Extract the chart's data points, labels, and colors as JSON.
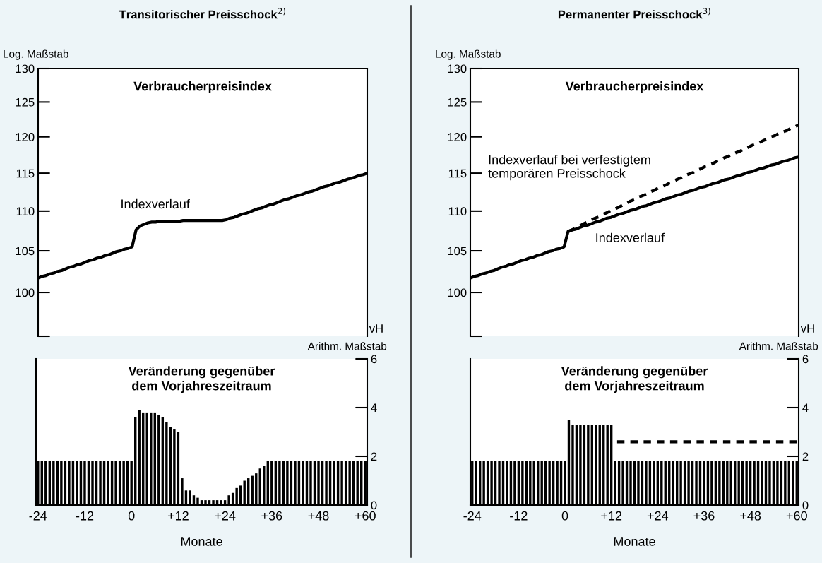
{
  "chart_data": [
    {
      "type": "line",
      "title": "Transitorischer Preisschock$^{2)}$",
      "subtitle": "Verbraucherpreisindex",
      "log": "y",
      "ylim": [
        95,
        130
      ],
      "yticks": [
        {
          "value": 95,
          "label": null
        },
        100,
        105,
        110,
        115,
        120,
        125,
        130
      ],
      "tick_labels": "y",
      "annotations": [
        "Log. Maßstab",
        "Indexverlauf"
      ],
      "categories": [
        null,
        null,
        null,
        null,
        null,
        null,
        null,
        null,
        null,
        null,
        null,
        null,
        null,
        null,
        null,
        null,
        null,
        null,
        null,
        null,
        null,
        null,
        null,
        null,
        null,
        null,
        null,
        null,
        null,
        null,
        null,
        null,
        null,
        null,
        null,
        null,
        null,
        null,
        null,
        null,
        null,
        null,
        null,
        null,
        null,
        null,
        null,
        null,
        null,
        null,
        null,
        null,
        null,
        null,
        null,
        null,
        null,
        null,
        null,
        null,
        null,
        null,
        null,
        null,
        null,
        null,
        null,
        null,
        null,
        null,
        null,
        null,
        null,
        null,
        null,
        null,
        null,
        null,
        null,
        null,
        null,
        null,
        null,
        null,
        null
      ],
      "series": [
        {
          "color": "#000000",
          "line_style": "solid",
          "values": [
            101.7,
            101.9,
            102.0,
            102.2,
            102.3,
            102.5,
            102.6,
            102.8,
            103.0,
            103.1,
            103.3,
            103.4,
            103.6,
            103.8,
            103.9,
            104.1,
            104.2,
            104.4,
            104.5,
            104.7,
            104.9,
            105.0,
            105.2,
            105.3,
            105.5,
            107.6,
            108.1,
            108.3,
            108.5,
            108.6,
            108.6,
            108.7,
            108.7,
            108.7,
            108.7,
            108.7,
            108.7,
            108.8,
            108.8,
            108.8,
            108.8,
            108.8,
            108.8,
            108.8,
            108.8,
            108.8,
            108.8,
            108.8,
            108.9,
            109.1,
            109.2,
            109.4,
            109.6,
            109.7,
            109.9,
            110.1,
            110.3,
            110.4,
            110.6,
            110.8,
            110.9,
            111.1,
            111.3,
            111.5,
            111.6,
            111.8,
            112.0,
            112.1,
            112.3,
            112.5,
            112.6,
            112.8,
            113.0,
            113.2,
            113.3,
            113.5,
            113.7,
            113.8,
            114.0,
            114.2,
            114.3,
            114.5,
            114.7,
            114.8,
            115.0
          ]
        }
      ]
    },
    {
      "type": "bar",
      "title": "Veränderung gegenüber\ndem Vorjahreszeitraum",
      "xlabel": "Monate",
      "y2label": "vH",
      "xlim": [
        -24.5,
        60.5
      ],
      "xticks": [
        -24,
        -12,
        0,
        {
          "value": 12,
          "label": "+12"
        },
        {
          "value": 24,
          "label": "+24"
        },
        {
          "value": 36,
          "label": "+36"
        },
        {
          "value": 48,
          "label": "+48"
        },
        {
          "value": 60,
          "label": "+60"
        }
      ],
      "y2lim": [
        0,
        6
      ],
      "y2ticks": [
        0,
        2,
        4,
        6
      ],
      "annotations": [
        "Arithm. Maßstab"
      ],
      "x": [
        -24,
        -23,
        -22,
        -21,
        -20,
        -19,
        -18,
        -17,
        -16,
        -15,
        -14,
        -13,
        -12,
        -11,
        -10,
        -9,
        -8,
        -7,
        -6,
        -5,
        -4,
        -3,
        -2,
        -1,
        0,
        1,
        2,
        3,
        4,
        5,
        6,
        7,
        8,
        9,
        10,
        11,
        12,
        13,
        14,
        15,
        16,
        17,
        18,
        19,
        20,
        21,
        22,
        23,
        24,
        25,
        26,
        27,
        28,
        29,
        30,
        31,
        32,
        33,
        34,
        35,
        36,
        37,
        38,
        39,
        40,
        41,
        42,
        43,
        44,
        45,
        46,
        47,
        48,
        49,
        50,
        51,
        52,
        53,
        54,
        55,
        56,
        57,
        58,
        59,
        60
      ],
      "series": [
        {
          "color": "#000000",
          "axis": "y2",
          "values": [
            1.8,
            1.8,
            1.8,
            1.8,
            1.8,
            1.8,
            1.8,
            1.8,
            1.8,
            1.8,
            1.8,
            1.8,
            1.8,
            1.8,
            1.8,
            1.8,
            1.8,
            1.8,
            1.8,
            1.8,
            1.8,
            1.8,
            1.8,
            1.8,
            1.8,
            3.6,
            3.9,
            3.8,
            3.8,
            3.8,
            3.8,
            3.7,
            3.6,
            3.4,
            3.2,
            3.1,
            3.0,
            1.1,
            0.6,
            0.6,
            0.4,
            0.3,
            0.2,
            0.2,
            0.2,
            0.2,
            0.2,
            0.2,
            0.2,
            0.4,
            0.5,
            0.7,
            0.8,
            1.0,
            1.1,
            1.2,
            1.3,
            1.5,
            1.6,
            1.8,
            1.8,
            1.8,
            1.8,
            1.8,
            1.8,
            1.8,
            1.8,
            1.8,
            1.8,
            1.8,
            1.8,
            1.8,
            1.8,
            1.8,
            1.8,
            1.8,
            1.8,
            1.8,
            1.8,
            1.8,
            1.8,
            1.8,
            1.8,
            1.8,
            1.8
          ]
        }
      ]
    },
    {
      "type": "line",
      "title": "Permanenter Preisschock$^{3)}$",
      "subtitle": "Verbraucherpreisindex",
      "log": "y",
      "ylim": [
        95,
        130
      ],
      "yticks": [
        {
          "value": 95,
          "label": null
        },
        100,
        105,
        110,
        115,
        120,
        125,
        130
      ],
      "tick_labels": "y",
      "annotations": [
        "Log. Maßstab",
        "Indexverlauf bei verfestigtem\ntemporären Preisschock",
        "Indexverlauf"
      ],
      "categories": [
        null,
        null,
        null,
        null,
        null,
        null,
        null,
        null,
        null,
        null,
        null,
        null,
        null,
        null,
        null,
        null,
        null,
        null,
        null,
        null,
        null,
        null,
        null,
        null,
        null,
        null,
        null,
        null,
        null,
        null,
        null,
        null,
        null,
        null,
        null,
        null,
        null,
        null,
        null,
        null,
        null,
        null,
        null,
        null,
        null,
        null,
        null,
        null,
        null,
        null,
        null,
        null,
        null,
        null,
        null,
        null,
        null,
        null,
        null,
        null,
        null,
        null,
        null,
        null,
        null,
        null,
        null,
        null,
        null,
        null,
        null,
        null,
        null,
        null,
        null,
        null,
        null,
        null,
        null,
        null,
        null,
        null,
        null,
        null,
        null
      ],
      "series": [
        {
          "color": "#000000",
          "line_style": "dashed",
          "values": [
            null,
            null,
            null,
            null,
            null,
            null,
            null,
            null,
            null,
            null,
            null,
            null,
            null,
            null,
            null,
            null,
            null,
            null,
            null,
            null,
            null,
            null,
            null,
            null,
            null,
            107.4,
            107.6,
            107.9,
            108.1,
            108.4,
            108.6,
            108.9,
            109.1,
            109.3,
            109.6,
            109.8,
            110.1,
            110.3,
            110.5,
            110.8,
            111.0,
            111.3,
            111.5,
            111.8,
            112.0,
            112.2,
            112.5,
            112.7,
            113.0,
            113.2,
            113.4,
            113.7,
            113.9,
            114.2,
            114.4,
            114.7,
            114.9,
            115.1,
            115.4,
            115.6,
            115.9,
            116.1,
            116.3,
            116.6,
            116.8,
            117.1,
            117.3,
            117.6,
            117.8,
            118.0,
            118.3,
            118.5,
            118.8,
            119.0,
            119.2,
            119.5,
            119.7,
            120.0,
            120.2,
            120.5,
            120.7,
            120.9,
            121.2,
            121.4,
            121.7
          ]
        },
        {
          "color": "#000000",
          "line_style": "solid",
          "values": [
            101.7,
            101.9,
            102.0,
            102.2,
            102.3,
            102.5,
            102.6,
            102.8,
            103.0,
            103.1,
            103.3,
            103.4,
            103.6,
            103.8,
            103.9,
            104.1,
            104.2,
            104.4,
            104.5,
            104.7,
            104.9,
            105.0,
            105.2,
            105.3,
            105.5,
            107.4,
            107.6,
            107.7,
            107.9,
            108.1,
            108.2,
            108.4,
            108.6,
            108.7,
            108.9,
            109.1,
            109.2,
            109.4,
            109.6,
            109.7,
            109.9,
            110.1,
            110.2,
            110.4,
            110.6,
            110.7,
            110.9,
            111.1,
            111.2,
            111.4,
            111.6,
            111.7,
            111.9,
            112.1,
            112.2,
            112.4,
            112.6,
            112.7,
            112.9,
            113.1,
            113.2,
            113.4,
            113.6,
            113.7,
            113.9,
            114.1,
            114.2,
            114.4,
            114.6,
            114.7,
            114.9,
            115.1,
            115.2,
            115.4,
            115.6,
            115.7,
            115.9,
            116.1,
            116.2,
            116.4,
            116.6,
            116.7,
            116.9,
            117.1,
            117.2
          ]
        }
      ]
    },
    {
      "type": "bar",
      "title": "Veränderung gegenüber\ndem Vorjahreszeitraum",
      "xlabel": "Monate",
      "y2label": "vH",
      "xlim": [
        -24.5,
        60.5
      ],
      "xticks": [
        -24,
        -12,
        0,
        {
          "value": 12,
          "label": "+12"
        },
        {
          "value": 24,
          "label": "+24"
        },
        {
          "value": 36,
          "label": "+36"
        },
        {
          "value": 48,
          "label": "+48"
        },
        {
          "value": 60,
          "label": "+60"
        }
      ],
      "y2lim": [
        0,
        6
      ],
      "y2ticks": [
        0,
        2,
        4,
        6
      ],
      "annotations": [
        "Arithm. Maßstab"
      ],
      "x": [
        -24,
        -23,
        -22,
        -21,
        -20,
        -19,
        -18,
        -17,
        -16,
        -15,
        -14,
        -13,
        -12,
        -11,
        -10,
        -9,
        -8,
        -7,
        -6,
        -5,
        -4,
        -3,
        -2,
        -1,
        0,
        1,
        2,
        3,
        4,
        5,
        6,
        7,
        8,
        9,
        10,
        11,
        12,
        13,
        14,
        15,
        16,
        17,
        18,
        19,
        20,
        21,
        22,
        23,
        24,
        25,
        26,
        27,
        28,
        29,
        30,
        31,
        32,
        33,
        34,
        35,
        36,
        37,
        38,
        39,
        40,
        41,
        42,
        43,
        44,
        45,
        46,
        47,
        48,
        49,
        50,
        51,
        52,
        53,
        54,
        55,
        56,
        57,
        58,
        59,
        60
      ],
      "series": [
        {
          "color": "#000000",
          "axis": "y2",
          "values": [
            1.8,
            1.8,
            1.8,
            1.8,
            1.8,
            1.8,
            1.8,
            1.8,
            1.8,
            1.8,
            1.8,
            1.8,
            1.8,
            1.8,
            1.8,
            1.8,
            1.8,
            1.8,
            1.8,
            1.8,
            1.8,
            1.8,
            1.8,
            1.8,
            1.8,
            3.5,
            3.3,
            3.3,
            3.3,
            3.3,
            3.3,
            3.3,
            3.3,
            3.3,
            3.3,
            3.3,
            3.3,
            1.8,
            1.8,
            1.8,
            1.8,
            1.8,
            1.8,
            1.8,
            1.8,
            1.8,
            1.8,
            1.8,
            1.8,
            1.8,
            1.8,
            1.8,
            1.8,
            1.8,
            1.8,
            1.8,
            1.8,
            1.8,
            1.8,
            1.8,
            1.8,
            1.8,
            1.8,
            1.8,
            1.8,
            1.8,
            1.8,
            1.8,
            1.8,
            1.8,
            1.8,
            1.8,
            1.8,
            1.8,
            1.8,
            1.8,
            1.8,
            1.8,
            1.8,
            1.8,
            1.8,
            1.8,
            1.8,
            1.8,
            1.8
          ]
        },
        {
          "type": "line",
          "color": "#000000",
          "axis": "y2",
          "line_style": "dashed",
          "x": [
            13.5,
            60
          ],
          "values": [
            2.6,
            2.6
          ]
        }
      ]
    }
  ]
}
